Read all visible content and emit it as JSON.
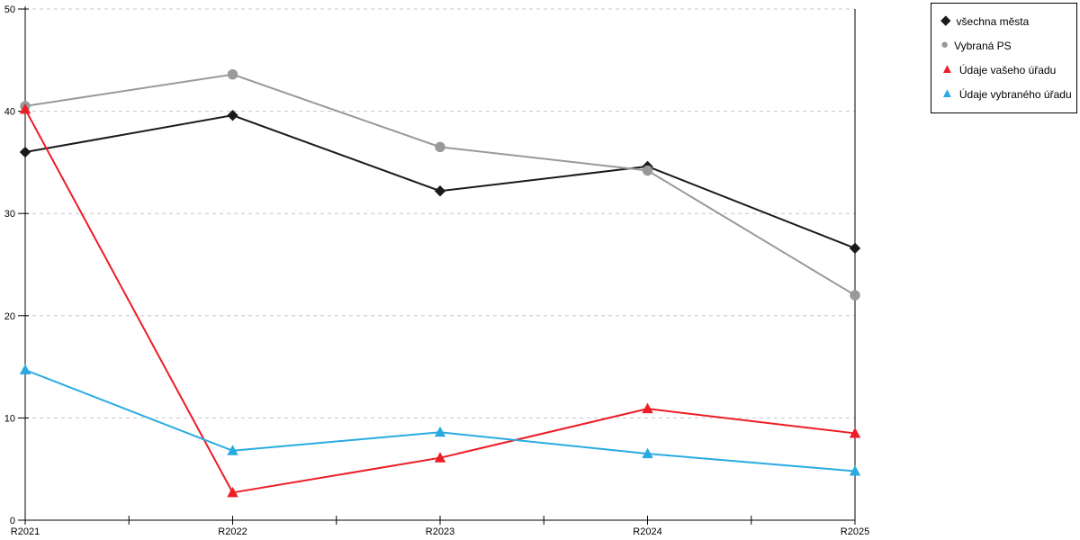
{
  "chart_data": {
    "type": "line",
    "title": "",
    "xlabel": "",
    "ylabel": "",
    "categories": [
      "R2021",
      "R2022",
      "R2023",
      "R2024",
      "R2025"
    ],
    "series": [
      {
        "name": "všechna města",
        "glyph": "◆",
        "marker": "diamond",
        "color": "#1a1a1a",
        "values": [
          36.0,
          39.6,
          32.2,
          34.6,
          26.6
        ]
      },
      {
        "name": "Vybraná PS",
        "glyph": "●",
        "marker": "circle",
        "color": "#999999",
        "values": [
          40.5,
          43.6,
          36.5,
          34.2,
          22.0
        ]
      },
      {
        "name": "Údaje vašeho úřadu",
        "glyph": "▲",
        "marker": "triangle",
        "color": "#ee1c25",
        "values": [
          40.2,
          2.7,
          6.1,
          10.9,
          8.5
        ]
      },
      {
        "name": "Údaje vybraného úřadu",
        "glyph": "▲",
        "marker": "triangle",
        "color": "#29abe2",
        "values": [
          14.7,
          6.8,
          8.6,
          6.5,
          4.8
        ]
      }
    ],
    "ylim": [
      0,
      50
    ],
    "yticks": [
      0,
      10,
      20,
      30,
      40,
      50
    ],
    "grid": "horizontal dashed, minor x ticks at midpoints",
    "legend_position": "top-right",
    "colors": {
      "grid": "#c8c8c8",
      "axis": "#000000",
      "background": "#ffffff"
    }
  }
}
